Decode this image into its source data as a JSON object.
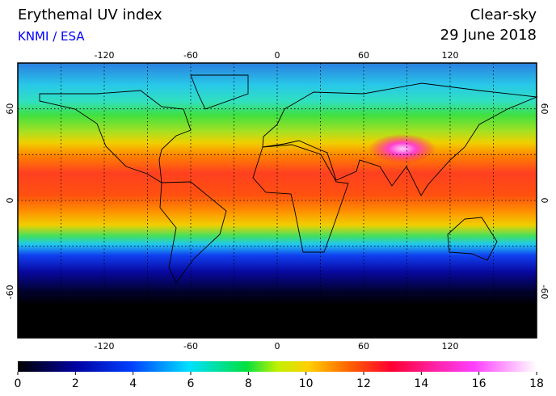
{
  "header": {
    "title": "Erythemal UV index",
    "source": "KNMI / ESA",
    "product": "Clear-sky",
    "date": "29 June 2018"
  },
  "map": {
    "lon_range": [
      -180,
      180
    ],
    "lat_range": [
      90,
      -90
    ],
    "lon_ticks": [
      -120,
      -60,
      0,
      60,
      120
    ],
    "lat_ticks": [
      60,
      0,
      -60
    ]
  },
  "colorbar": {
    "range": [
      0,
      18
    ],
    "ticks": [
      0,
      2,
      4,
      6,
      8,
      10,
      12,
      14,
      16,
      18
    ]
  }
}
